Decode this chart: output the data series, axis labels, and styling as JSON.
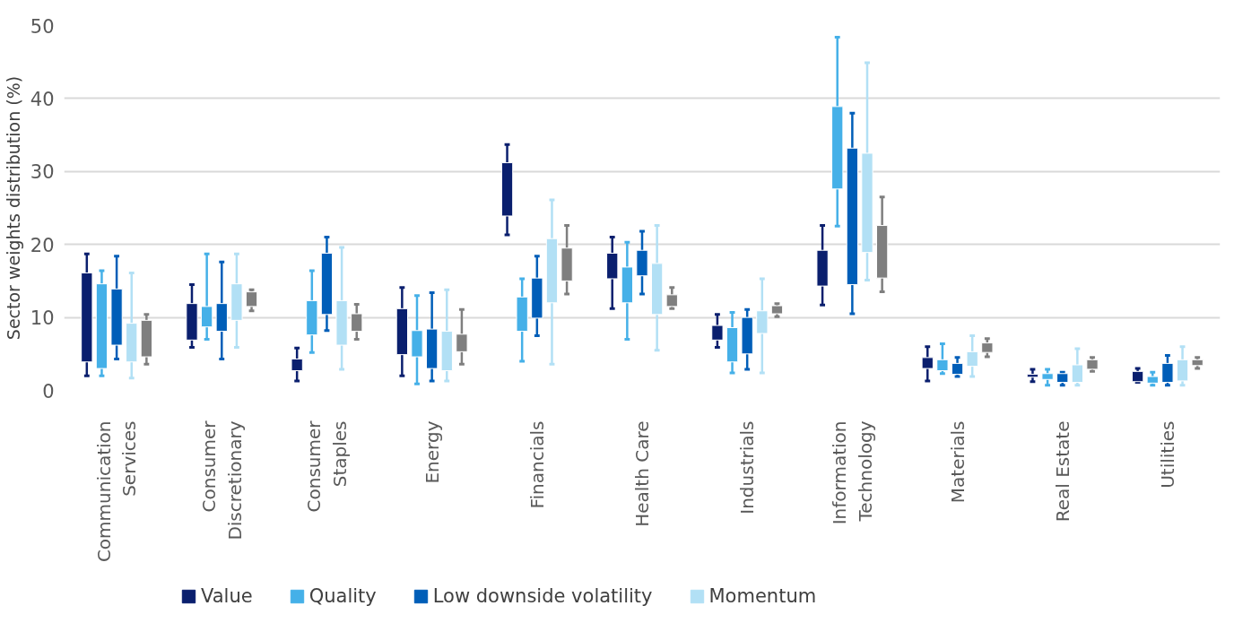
{
  "chart_data": {
    "type": "box",
    "ylabel": "Sector weights distribution (%)",
    "categories": [
      "Communication\nServices",
      "Consumer\nDiscretionary",
      "Consumer\nStaples",
      "Energy",
      "Financials",
      "Health Care",
      "Industrials",
      "Information\nTechnology",
      "Materials",
      "Real Estate",
      "Utilities"
    ],
    "ylim": [
      0,
      50
    ],
    "yticks": [
      0,
      10,
      20,
      30,
      40,
      50
    ],
    "grid": "y",
    "legend": "bottom",
    "series": [
      {
        "name": "Value",
        "color": "#0a1f6e",
        "boxes": [
          {
            "low": 2.0,
            "q1": 3.9,
            "q3": 16.1,
            "high": 18.7
          },
          {
            "low": 5.9,
            "q1": 6.9,
            "q3": 11.9,
            "high": 14.5
          },
          {
            "low": 1.3,
            "q1": 2.7,
            "q3": 4.3,
            "high": 5.8
          },
          {
            "low": 2.0,
            "q1": 4.9,
            "q3": 11.2,
            "high": 14.1
          },
          {
            "low": 21.3,
            "q1": 23.9,
            "q3": 31.2,
            "high": 33.7
          },
          {
            "low": 11.2,
            "q1": 15.3,
            "q3": 18.8,
            "high": 21.0
          },
          {
            "low": 5.9,
            "q1": 6.9,
            "q3": 8.9,
            "high": 10.4
          },
          {
            "low": 11.7,
            "q1": 14.3,
            "q3": 19.2,
            "high": 22.6
          },
          {
            "low": 1.3,
            "q1": 3.0,
            "q3": 4.5,
            "high": 6.0
          },
          {
            "low": 1.2,
            "q1": 1.8,
            "q3": 2.2,
            "high": 2.9
          },
          {
            "low": 1.1,
            "q1": 1.2,
            "q3": 2.6,
            "high": 3.0
          }
        ]
      },
      {
        "name": "Quality",
        "color": "#45b0e8",
        "boxes": [
          {
            "low": 2.0,
            "q1": 3.0,
            "q3": 14.6,
            "high": 16.4
          },
          {
            "low": 7.0,
            "q1": 8.7,
            "q3": 11.5,
            "high": 18.7
          },
          {
            "low": 5.2,
            "q1": 7.6,
            "q3": 12.3,
            "high": 16.4
          },
          {
            "low": 0.9,
            "q1": 4.6,
            "q3": 8.2,
            "high": 13.0
          },
          {
            "low": 4.0,
            "q1": 8.1,
            "q3": 12.8,
            "high": 15.3
          },
          {
            "low": 7.0,
            "q1": 12.0,
            "q3": 16.9,
            "high": 20.3
          },
          {
            "low": 2.4,
            "q1": 3.9,
            "q3": 8.6,
            "high": 10.7
          },
          {
            "low": 22.5,
            "q1": 27.6,
            "q3": 38.9,
            "high": 48.4
          },
          {
            "low": 2.3,
            "q1": 2.7,
            "q3": 4.2,
            "high": 6.4
          },
          {
            "low": 0.7,
            "q1": 1.5,
            "q3": 2.3,
            "high": 2.9
          },
          {
            "low": 0.7,
            "q1": 1.0,
            "q3": 1.9,
            "high": 2.5
          }
        ]
      },
      {
        "name": "Low downside volatility",
        "color": "#005eb8",
        "boxes": [
          {
            "low": 4.3,
            "q1": 6.2,
            "q3": 13.9,
            "high": 18.4
          },
          {
            "low": 4.3,
            "q1": 8.1,
            "q3": 11.9,
            "high": 17.6
          },
          {
            "low": 8.2,
            "q1": 10.4,
            "q3": 18.8,
            "high": 21.0
          },
          {
            "low": 1.3,
            "q1": 3.0,
            "q3": 8.4,
            "high": 13.4
          },
          {
            "low": 7.5,
            "q1": 9.9,
            "q3": 15.4,
            "high": 18.4
          },
          {
            "low": 13.2,
            "q1": 15.7,
            "q3": 19.2,
            "high": 21.8
          },
          {
            "low": 2.9,
            "q1": 5.0,
            "q3": 10.0,
            "high": 11.1
          },
          {
            "low": 10.5,
            "q1": 14.5,
            "q3": 33.2,
            "high": 38.0
          },
          {
            "low": 1.9,
            "q1": 2.2,
            "q3": 3.7,
            "high": 4.5
          },
          {
            "low": 0.7,
            "q1": 1.1,
            "q3": 2.3,
            "high": 2.5
          },
          {
            "low": 0.7,
            "q1": 1.1,
            "q3": 3.7,
            "high": 4.8
          }
        ]
      },
      {
        "name": "Momentum",
        "color": "#b2e0f5",
        "boxes": [
          {
            "low": 1.7,
            "q1": 3.9,
            "q3": 9.2,
            "high": 16.1
          },
          {
            "low": 5.9,
            "q1": 9.6,
            "q3": 14.6,
            "high": 18.7
          },
          {
            "low": 2.9,
            "q1": 6.2,
            "q3": 12.3,
            "high": 19.6
          },
          {
            "low": 1.3,
            "q1": 2.7,
            "q3": 8.1,
            "high": 13.8
          },
          {
            "low": 3.6,
            "q1": 12.0,
            "q3": 20.8,
            "high": 26.1
          },
          {
            "low": 5.5,
            "q1": 10.4,
            "q3": 17.4,
            "high": 22.6
          },
          {
            "low": 2.4,
            "q1": 7.8,
            "q3": 10.9,
            "high": 15.3
          },
          {
            "low": 15.1,
            "q1": 18.9,
            "q3": 32.5,
            "high": 44.9
          },
          {
            "low": 1.9,
            "q1": 3.3,
            "q3": 5.3,
            "high": 7.5
          },
          {
            "low": 0.7,
            "q1": 1.1,
            "q3": 3.5,
            "high": 5.7
          },
          {
            "low": 0.7,
            "q1": 1.3,
            "q3": 4.2,
            "high": 6.0
          }
        ]
      },
      {
        "color": "#7f7f7f",
        "boxes": [
          {
            "low": 3.6,
            "q1": 4.6,
            "q3": 9.6,
            "high": 10.4
          },
          {
            "low": 10.9,
            "q1": 11.5,
            "q3": 13.5,
            "high": 13.8
          },
          {
            "low": 7.0,
            "q1": 8.1,
            "q3": 10.5,
            "high": 11.8
          },
          {
            "low": 3.6,
            "q1": 5.3,
            "q3": 7.7,
            "high": 11.1
          },
          {
            "low": 13.2,
            "q1": 15.0,
            "q3": 19.5,
            "high": 22.6
          },
          {
            "low": 11.2,
            "q1": 11.5,
            "q3": 13.1,
            "high": 14.1
          },
          {
            "low": 10.1,
            "q1": 10.5,
            "q3": 11.6,
            "high": 11.9
          },
          {
            "low": 13.5,
            "q1": 15.4,
            "q3": 22.6,
            "high": 26.5
          },
          {
            "low": 4.6,
            "q1": 5.2,
            "q3": 6.5,
            "high": 7.1
          },
          {
            "low": 2.6,
            "q1": 2.9,
            "q3": 4.2,
            "high": 4.5
          },
          {
            "low": 3.0,
            "q1": 3.4,
            "q3": 4.2,
            "high": 4.5
          }
        ]
      }
    ]
  }
}
